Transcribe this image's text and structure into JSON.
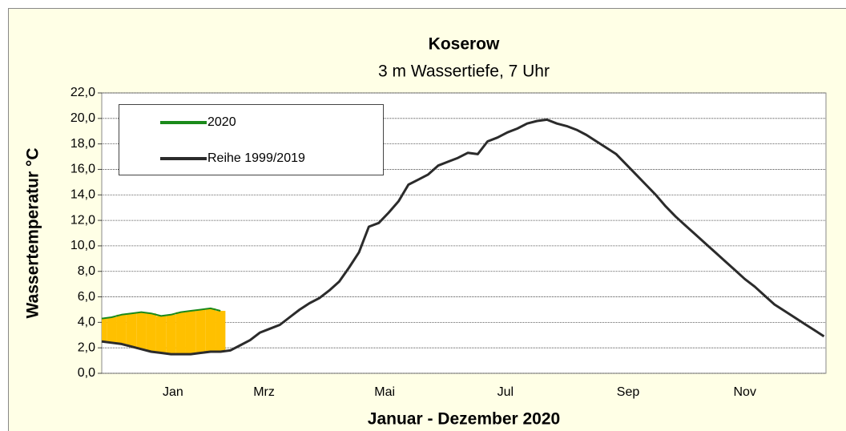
{
  "chart_data": {
    "type": "line",
    "title": "Koserow",
    "subtitle": "3 m Wassertiefe, 7 Uhr",
    "x_label": "Januar - Dezember 2020",
    "y_label": "Wassertemperatur °C",
    "x": [
      0,
      5,
      10,
      15,
      20,
      25,
      30,
      35,
      40,
      45,
      50,
      55,
      60,
      65,
      70,
      75,
      80,
      85,
      90,
      95,
      100,
      105,
      110,
      115,
      120,
      125,
      130,
      135,
      140,
      145,
      150,
      155,
      160,
      165,
      170,
      175,
      180,
      185,
      190,
      195,
      200,
      205,
      210,
      215,
      220,
      225,
      230,
      235,
      240,
      245,
      250,
      255,
      260,
      265,
      270,
      275,
      280,
      285,
      290,
      295,
      300,
      305,
      310,
      315,
      320,
      325,
      330,
      335,
      340,
      345,
      350,
      355,
      360,
      365
    ],
    "xlim": [
      0,
      366
    ],
    "xticks": [
      {
        "value": 36,
        "label": "Jan"
      },
      {
        "value": 82,
        "label": "Mrz"
      },
      {
        "value": 143,
        "label": "Mai"
      },
      {
        "value": 204,
        "label": "Jul"
      },
      {
        "value": 266,
        "label": "Sep"
      },
      {
        "value": 325,
        "label": "Nov"
      }
    ],
    "ylim": [
      0,
      22
    ],
    "yticks": [
      {
        "value": 0,
        "label": "0,0"
      },
      {
        "value": 2,
        "label": "2,0"
      },
      {
        "value": 4,
        "label": "4,0"
      },
      {
        "value": 6,
        "label": "6,0"
      },
      {
        "value": 8,
        "label": "8,0"
      },
      {
        "value": 10,
        "label": "10,0"
      },
      {
        "value": 12,
        "label": "12,0"
      },
      {
        "value": 14,
        "label": "14,0"
      },
      {
        "value": 16,
        "label": "16,0"
      },
      {
        "value": 18,
        "label": "18,0"
      },
      {
        "value": 20,
        "label": "20,0"
      },
      {
        "value": 22,
        "label": "22,0"
      }
    ],
    "grid": true,
    "legend": "upper-left",
    "fill_color": "#ffc000",
    "series": [
      {
        "name": "2020",
        "color": "#1a8a1a",
        "values": [
          4.3,
          4.4,
          4.6,
          4.7,
          4.8,
          4.7,
          4.5,
          4.6,
          4.8,
          4.9,
          5.0,
          5.1,
          4.9,
          null,
          null,
          null,
          null,
          null,
          null,
          null,
          null,
          null,
          null,
          null,
          null,
          null,
          null,
          null,
          null,
          null,
          null,
          null,
          null,
          null,
          null,
          null,
          null,
          null,
          null,
          null,
          null,
          null,
          null,
          null,
          null,
          null,
          null,
          null,
          null,
          null,
          null,
          null,
          null,
          null,
          null,
          null,
          null,
          null,
          null,
          null,
          null,
          null,
          null,
          null,
          null,
          null,
          null,
          null,
          null,
          null,
          null,
          null,
          null,
          null
        ]
      },
      {
        "name": "Reihe 1999/2019",
        "color": "#2b2b2b",
        "values": [
          2.5,
          2.4,
          2.3,
          2.1,
          1.9,
          1.7,
          1.6,
          1.5,
          1.5,
          1.5,
          1.6,
          1.7,
          1.7,
          1.8,
          2.2,
          2.6,
          3.2,
          3.5,
          3.8,
          4.4,
          5.0,
          5.5,
          5.9,
          6.5,
          7.2,
          8.3,
          9.5,
          11.5,
          11.8,
          12.6,
          13.5,
          14.8,
          15.2,
          15.6,
          16.3,
          16.6,
          16.9,
          17.3,
          17.2,
          18.2,
          18.5,
          18.9,
          19.2,
          19.6,
          19.8,
          19.9,
          19.6,
          19.4,
          19.1,
          18.7,
          18.2,
          17.7,
          17.2,
          16.4,
          15.6,
          14.8,
          14.0,
          13.1,
          12.3,
          11.6,
          10.9,
          10.2,
          9.5,
          8.8,
          8.1,
          7.4,
          6.8,
          6.1,
          5.4,
          4.9,
          4.4,
          3.9,
          3.4,
          2.9
        ]
      }
    ]
  }
}
